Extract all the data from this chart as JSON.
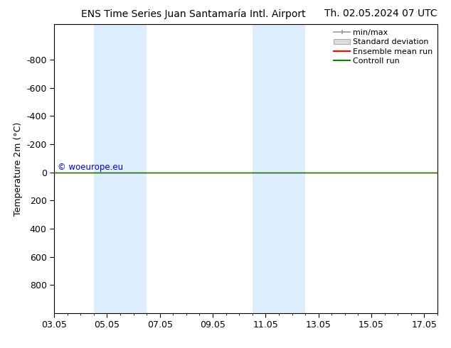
{
  "title_left": "ENS Time Series Juan Santamaría Intl. Airport",
  "title_right": "Th. 02.05.2024 07 UTC",
  "ylabel": "Temperature 2m (°C)",
  "ylim_bottom": -1050,
  "ylim_top": 1000,
  "yticks": [
    -800,
    -600,
    -400,
    -200,
    0,
    200,
    400,
    600,
    800
  ],
  "xlim": [
    0,
    14.5
  ],
  "xtick_labels": [
    "03.05",
    "05.05",
    "07.05",
    "09.05",
    "11.05",
    "13.05",
    "15.05",
    "17.05"
  ],
  "xtick_positions": [
    0,
    2,
    4,
    6,
    8,
    10,
    12,
    14
  ],
  "shaded_columns": [
    {
      "start": 1.5,
      "end": 3.5
    },
    {
      "start": 7.5,
      "end": 9.5
    }
  ],
  "shade_color": "#ddeeff",
  "control_run_y": 0,
  "ensemble_mean_y": 0,
  "watermark": "© woeurope.eu",
  "watermark_color": "#0000cc",
  "legend_items": [
    {
      "label": "min/max",
      "color": "#aaaaaa"
    },
    {
      "label": "Standard deviation",
      "color": "#cccccc"
    },
    {
      "label": "Ensemble mean run",
      "color": "#ff0000"
    },
    {
      "label": "Controll run",
      "color": "#008800"
    }
  ],
  "bg_color": "#ffffff",
  "title_fontsize": 10,
  "axis_fontsize": 9,
  "tick_fontsize": 9,
  "legend_fontsize": 8
}
